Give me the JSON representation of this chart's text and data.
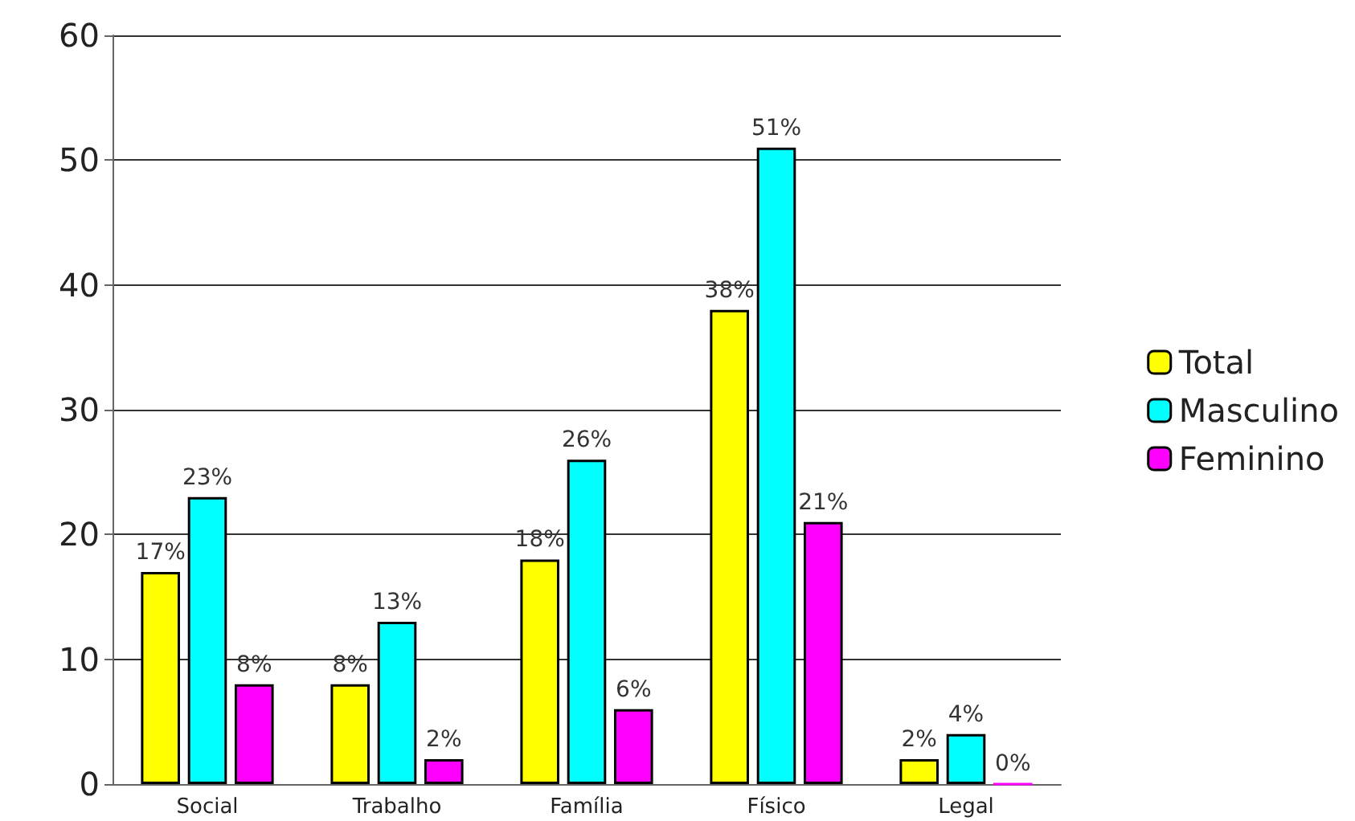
{
  "chart_data": {
    "type": "bar",
    "categories": [
      "Social",
      "Trabalho",
      "Família",
      "Físico",
      "Legal"
    ],
    "series": [
      {
        "name": "Total",
        "color": "#ffff00",
        "values": [
          17,
          8,
          18,
          38,
          2
        ],
        "value_labels": [
          "17%",
          "8%",
          "18%",
          "38%",
          "2%"
        ]
      },
      {
        "name": "Masculino",
        "color": "#00ffff",
        "values": [
          23,
          13,
          26,
          51,
          4
        ],
        "value_labels": [
          "23%",
          "13%",
          "26%",
          "51%",
          "4%"
        ]
      },
      {
        "name": "Feminino",
        "color": "#ff00ff",
        "values": [
          8,
          2,
          6,
          21,
          0
        ],
        "value_labels": [
          "8%",
          "2%",
          "6%",
          "21%",
          "0%"
        ]
      }
    ],
    "ylim": [
      0,
      60
    ],
    "yticks": [
      0,
      10,
      20,
      30,
      40,
      50,
      60
    ],
    "grid": "y",
    "legend": "right"
  }
}
